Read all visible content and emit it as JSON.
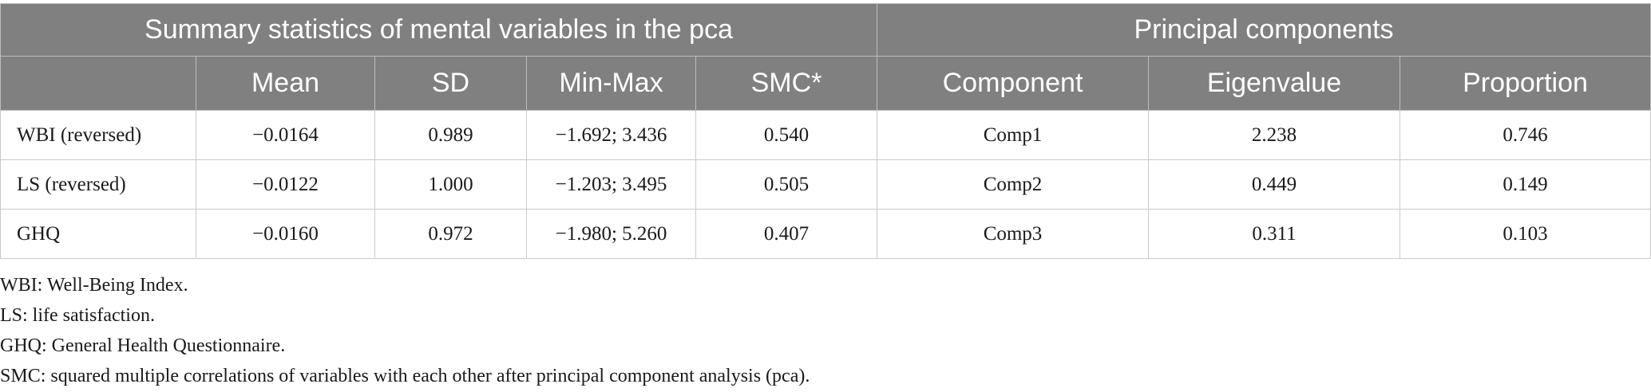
{
  "table": {
    "group_headers": [
      "Summary statistics of mental variables in the pca",
      "Principal components"
    ],
    "column_headers": [
      "",
      "Mean",
      "SD",
      "Min-Max",
      "SMC*",
      "Component",
      "Eigenvalue",
      "Proportion"
    ],
    "rows": [
      [
        "WBI (reversed)",
        "−0.0164",
        "0.989",
        "−1.692; 3.436",
        "0.540",
        "Comp1",
        "2.238",
        "0.746"
      ],
      [
        "LS (reversed)",
        "−0.0122",
        "1.000",
        "−1.203; 3.495",
        "0.505",
        "Comp2",
        "0.449",
        "0.149"
      ],
      [
        "GHQ",
        "−0.0160",
        "0.972",
        "−1.980; 5.260",
        "0.407",
        "Comp3",
        "0.311",
        "0.103"
      ]
    ]
  },
  "footnotes": [
    "WBI: Well-Being Index.",
    "LS: life satisfaction.",
    "GHQ: General Health Questionnaire.",
    "SMC: squared multiple correlations of variables with each other after principal component analysis (pca)."
  ],
  "colors": {
    "header_background": "#808080",
    "header_text": "#ffffff",
    "grid_line": "#c9c9c9"
  }
}
